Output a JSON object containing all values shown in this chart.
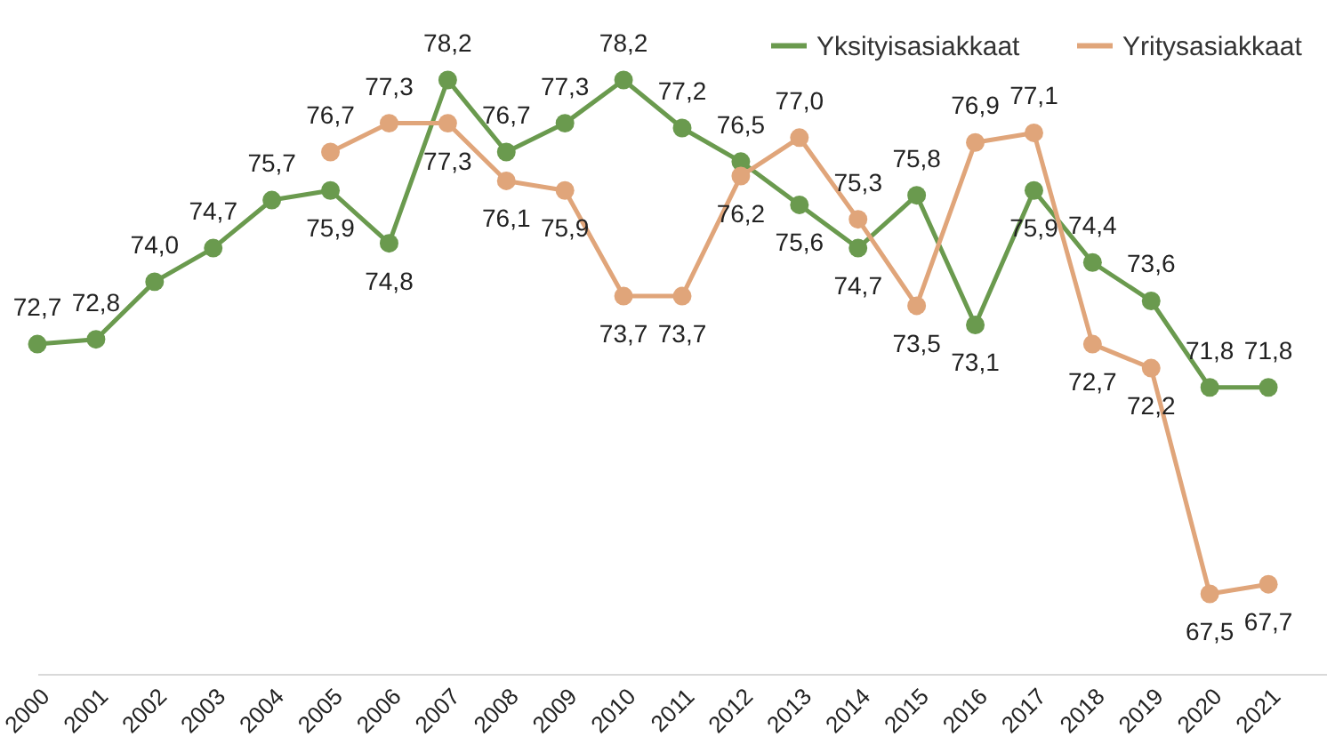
{
  "chart_data": {
    "type": "line",
    "categories": [
      "2000",
      "2001",
      "2002",
      "2003",
      "2004",
      "2005",
      "2006",
      "2007",
      "2008",
      "2009",
      "2010",
      "2011",
      "2012",
      "2013",
      "2014",
      "2015",
      "2016",
      "2017",
      "2018",
      "2019",
      "2020",
      "2021"
    ],
    "series": [
      {
        "name": "Yksityisasiakkaat",
        "color": "#6a9a4e",
        "values": [
          72.7,
          72.8,
          74.0,
          74.7,
          75.7,
          75.9,
          74.8,
          78.2,
          76.7,
          77.3,
          78.2,
          77.2,
          76.5,
          75.6,
          74.7,
          75.8,
          73.1,
          75.9,
          74.4,
          73.6,
          71.8,
          71.8
        ],
        "value_labels": [
          "72,7",
          "72,8",
          "74,0",
          "74,7",
          "75,7",
          "75,9",
          "74,8",
          "78,2",
          "76,7",
          "77,3",
          "78,2",
          "77,2",
          "76,5",
          "75,6",
          "74,7",
          "75,8",
          "73,1",
          "75,9",
          "74,4",
          "73,6",
          "71,8",
          "71,8"
        ]
      },
      {
        "name": "Yritysasiakkaat",
        "color": "#e0a57a",
        "values": [
          null,
          null,
          null,
          null,
          null,
          76.7,
          77.3,
          77.3,
          76.1,
          75.9,
          73.7,
          73.7,
          76.2,
          77.0,
          75.3,
          73.5,
          76.9,
          77.1,
          72.7,
          72.2,
          67.5,
          67.7
        ],
        "value_labels": [
          null,
          null,
          null,
          null,
          null,
          "76,7",
          "77,3",
          "77,3",
          "76,1",
          "75,9",
          "73,7",
          "73,7",
          "76,2",
          "77,0",
          "75,3",
          "73,5",
          "76,9",
          "77,1",
          "72,7",
          "72,2",
          "67,5",
          "67,7"
        ]
      }
    ],
    "tick_labels": "x",
    "legend": "top right",
    "marker": "circle"
  }
}
